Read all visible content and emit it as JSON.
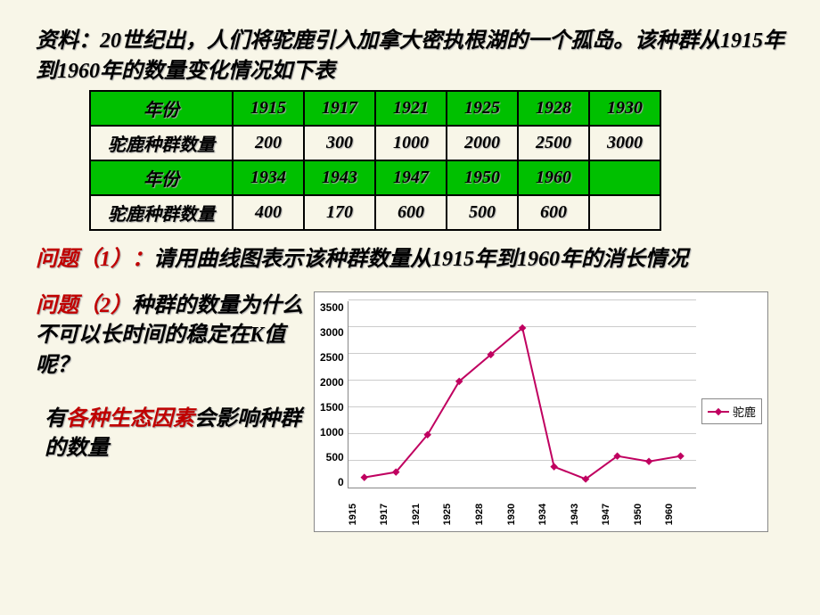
{
  "intro": "资料：20世纪出，人们将驼鹿引入加拿大密执根湖的一个孤岛。该种群从1915年到1960年的数量变化情况如下表",
  "table": {
    "row1_label": "年份",
    "row1": [
      "1915",
      "1917",
      "1921",
      "1925",
      "1928",
      "1930"
    ],
    "row2_label": "驼鹿种群数量",
    "row2": [
      "200",
      "300",
      "1000",
      "2000",
      "2500",
      "3000"
    ],
    "row3_label": "年份",
    "row3": [
      "1934",
      "1943",
      "1947",
      "1950",
      "1960",
      ""
    ],
    "row4_label": "驼鹿种群数量",
    "row4": [
      "400",
      "170",
      "600",
      "500",
      "600",
      ""
    ]
  },
  "q1": {
    "label": "问题（1）：",
    "text": "请用曲线图表示该种群数量从1915年到1960年的消长情况"
  },
  "q2": {
    "label": "问题（2）",
    "text": "种群的数量为什么不可以长时间的稳定在K值呢？"
  },
  "answer": {
    "pre": "有",
    "highlight": "各种生态因素",
    "post": "会影响种群的数量"
  },
  "chart": {
    "type": "line",
    "x": [
      "1915",
      "1917",
      "1921",
      "1925",
      "1928",
      "1930",
      "1934",
      "1943",
      "1947",
      "1950",
      "1960"
    ],
    "y": [
      200,
      300,
      1000,
      2000,
      2500,
      3000,
      400,
      170,
      600,
      500,
      600
    ],
    "ylim": [
      0,
      3500
    ],
    "ytick_step": 500,
    "yticks": [
      "3500",
      "3000",
      "2500",
      "2000",
      "1500",
      "1000",
      "500",
      "0"
    ],
    "line_color": "#c00060",
    "marker": "diamond",
    "marker_size": 6,
    "grid_color": "#cccccc",
    "background": "#ffffff",
    "legend_label": "驼鹿",
    "title_fontsize": 12,
    "label_fontsize": 12
  },
  "colors": {
    "slide_bg": "#f8f6e8",
    "table_header_bg": "#00c000",
    "accent_red": "#c00000"
  }
}
